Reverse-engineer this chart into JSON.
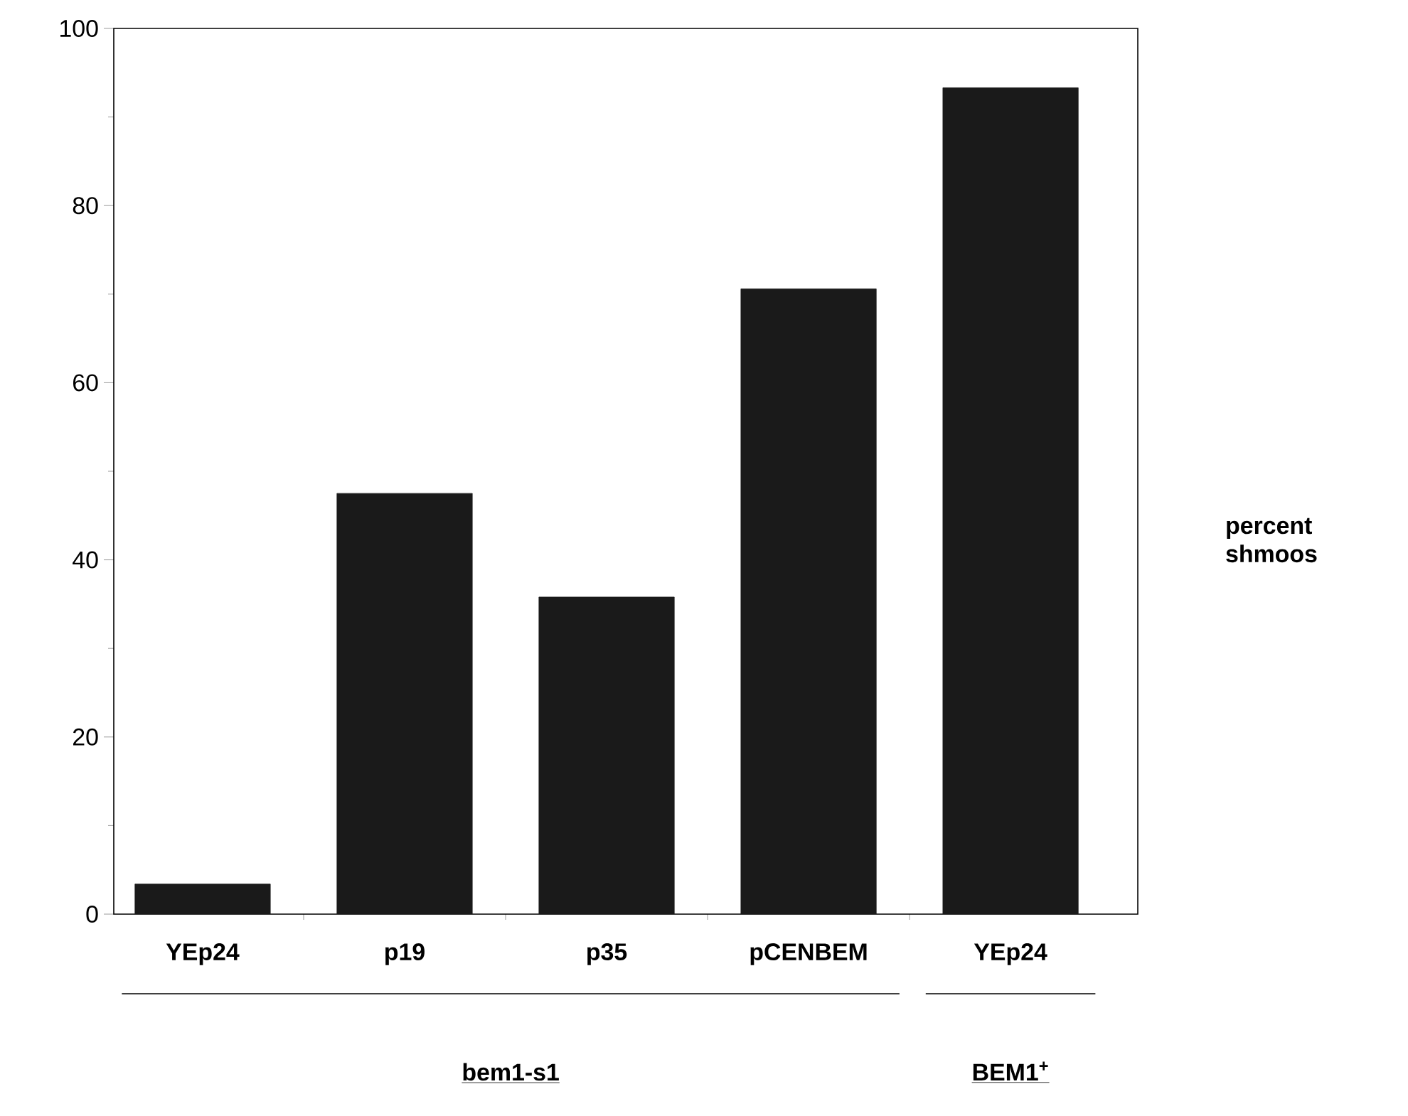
{
  "chart_data": {
    "type": "bar",
    "categories": [
      "YEp24",
      "p19",
      "p35",
      "pCENBEM",
      "YEp24"
    ],
    "values": [
      3.4,
      47.5,
      35.8,
      70.6,
      93.3
    ],
    "color": "#1a1a1a",
    "ylim": [
      0,
      100
    ],
    "yticks": [
      0,
      20,
      40,
      60,
      80,
      100
    ],
    "ylabel": "percent shmoos",
    "annotations": [
      "bem1-s1",
      "BEM1$^{+}$"
    ]
  }
}
